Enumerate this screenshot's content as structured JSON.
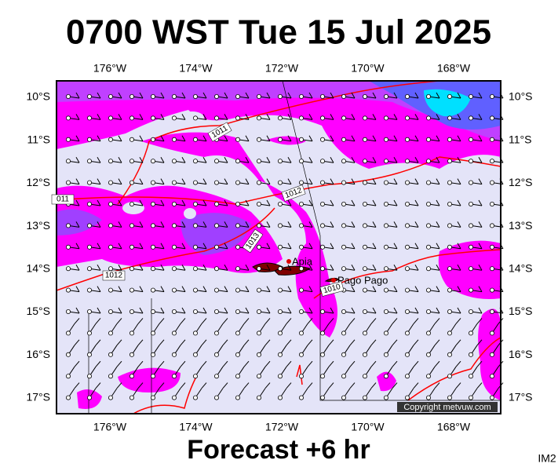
{
  "header": {
    "title": "0700 WST Tue 15 Jul 2025"
  },
  "map": {
    "lon_labels": [
      "176°W",
      "174°W",
      "172°W",
      "170°W",
      "168°W"
    ],
    "lat_labels": [
      "10°S",
      "11°S",
      "12°S",
      "13°S",
      "14°S",
      "15°S",
      "16°S",
      "17°S"
    ],
    "isobar_labels": [
      "1011",
      "011",
      "1012",
      "1013",
      "1012",
      "1010"
    ],
    "places": [
      "Apia",
      "Pago Pago"
    ],
    "copyright": "Copyright metvuw.com"
  },
  "footer": {
    "forecast": "Forecast +6 hr",
    "code": "IM2"
  }
}
